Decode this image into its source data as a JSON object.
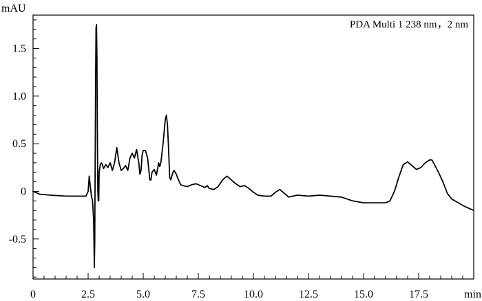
{
  "chart_data": {
    "type": "line",
    "title": "",
    "legend": "PDA Multi 1 238 nm，2 nm",
    "ylabel": "mAU",
    "xlabel": "min",
    "xlim": [
      0,
      20
    ],
    "ylim": [
      -0.92,
      1.85
    ],
    "grid": false,
    "x_ticks": [
      0,
      2.5,
      5.0,
      7.5,
      10.0,
      12.5,
      15.0,
      17.5,
      20
    ],
    "x_tick_labels": [
      "0",
      "2.5",
      "5.0",
      "7.5",
      "10.0",
      "12.5",
      "15.0",
      "17.5",
      "min"
    ],
    "y_ticks": [
      -0.5,
      0,
      0.5,
      1.0,
      1.5
    ],
    "y_tick_labels": [
      "-0.5",
      "0",
      "0.5",
      "1.0",
      "1.5"
    ],
    "series": [
      {
        "color": "#000000",
        "x": [
          0,
          0.3,
          0.8,
          1.5,
          2.0,
          2.4,
          2.5,
          2.55,
          2.6,
          2.65,
          2.7,
          2.75,
          2.78,
          2.8,
          2.82,
          2.84,
          2.86,
          2.88,
          2.9,
          2.92,
          2.94,
          2.96,
          2.98,
          3.0,
          3.05,
          3.1,
          3.15,
          3.2,
          3.3,
          3.4,
          3.5,
          3.55,
          3.6,
          3.7,
          3.75,
          3.8,
          3.9,
          3.95,
          4.0,
          4.1,
          4.2,
          4.3,
          4.4,
          4.5,
          4.6,
          4.7,
          4.8,
          4.85,
          4.9,
          4.95,
          5.0,
          5.1,
          5.2,
          5.3,
          5.35,
          5.4,
          5.5,
          5.6,
          5.7,
          5.75,
          5.8,
          5.9,
          6.0,
          6.05,
          6.1,
          6.15,
          6.2,
          6.25,
          6.3,
          6.35,
          6.4,
          6.5,
          6.6,
          6.7,
          6.8,
          7.0,
          7.2,
          7.4,
          7.6,
          7.8,
          7.9,
          8.0,
          8.2,
          8.4,
          8.6,
          8.8,
          9.0,
          9.2,
          9.4,
          9.6,
          9.8,
          10.0,
          10.2,
          10.5,
          10.8,
          11.0,
          11.2,
          11.4,
          11.6,
          12.0,
          12.5,
          13.0,
          13.5,
          14.0,
          14.5,
          15.0,
          15.5,
          16.0,
          16.2,
          16.4,
          16.6,
          16.8,
          17.0,
          17.1,
          17.2,
          17.4,
          17.6,
          17.8,
          18.0,
          18.1,
          18.2,
          18.4,
          18.6,
          18.8,
          19.0,
          19.3,
          19.6,
          20.0
        ],
        "values": [
          0.0,
          -0.03,
          -0.04,
          -0.05,
          -0.05,
          -0.05,
          0.0,
          0.16,
          0.05,
          -0.05,
          -0.1,
          -0.3,
          -0.8,
          -0.55,
          0.3,
          1.2,
          1.72,
          1.75,
          1.4,
          0.6,
          0.0,
          -0.1,
          -0.1,
          0.2,
          0.28,
          0.3,
          0.28,
          0.24,
          0.28,
          0.25,
          0.3,
          0.26,
          0.22,
          0.3,
          0.38,
          0.46,
          0.3,
          0.26,
          0.22,
          0.24,
          0.27,
          0.22,
          0.35,
          0.4,
          0.35,
          0.44,
          0.3,
          0.18,
          0.22,
          0.38,
          0.43,
          0.43,
          0.35,
          0.12,
          0.12,
          0.2,
          0.23,
          0.17,
          0.3,
          0.26,
          0.3,
          0.5,
          0.75,
          0.8,
          0.7,
          0.45,
          0.15,
          0.12,
          0.16,
          0.2,
          0.22,
          0.18,
          0.12,
          0.07,
          0.06,
          0.05,
          0.07,
          0.08,
          0.06,
          0.04,
          0.06,
          0.03,
          0.02,
          0.05,
          0.12,
          0.16,
          0.12,
          0.08,
          0.05,
          0.06,
          0.03,
          -0.01,
          -0.04,
          -0.05,
          -0.05,
          -0.01,
          0.02,
          -0.02,
          -0.06,
          -0.04,
          -0.05,
          -0.04,
          -0.05,
          -0.06,
          -0.1,
          -0.12,
          -0.12,
          -0.12,
          -0.1,
          0.0,
          0.15,
          0.28,
          0.31,
          0.29,
          0.27,
          0.23,
          0.25,
          0.3,
          0.33,
          0.33,
          0.29,
          0.2,
          0.1,
          -0.02,
          -0.08,
          -0.12,
          -0.16,
          -0.2
        ]
      }
    ]
  }
}
